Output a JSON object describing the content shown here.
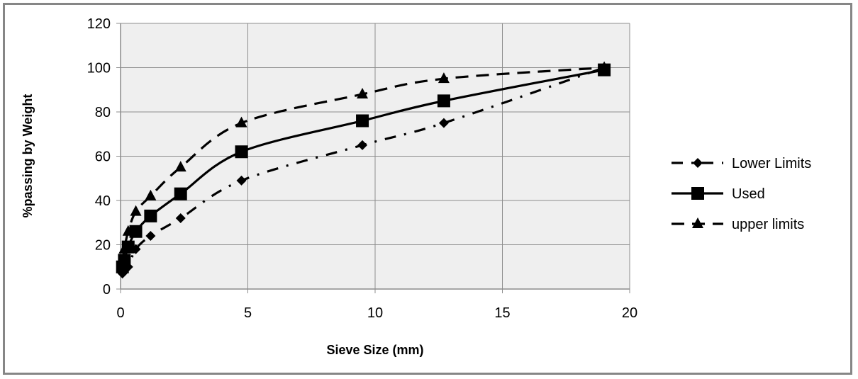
{
  "chart_data": {
    "type": "scatter",
    "title": "",
    "xlabel": "Sieve Size (mm)",
    "ylabel": "%passing by Weight",
    "xlim": [
      0,
      20
    ],
    "ylim": [
      0,
      120
    ],
    "x_ticks": [
      0,
      5,
      10,
      15,
      20
    ],
    "y_ticks": [
      0,
      20,
      40,
      60,
      80,
      100,
      120
    ],
    "grid": true,
    "legend_position": "right",
    "plot_background": "#efefef",
    "series": [
      {
        "name": "Lower Limits",
        "marker": "diamond",
        "line_style": "dash-dot",
        "color": "#000000",
        "x": [
          0.075,
          0.15,
          0.3,
          0.6,
          1.18,
          2.36,
          4.75,
          9.5,
          12.7,
          19
        ],
        "y": [
          7,
          9,
          10,
          18,
          24,
          32,
          49,
          65,
          75,
          100
        ]
      },
      {
        "name": "Used",
        "marker": "square",
        "line_style": "solid",
        "color": "#000000",
        "x": [
          0.075,
          0.15,
          0.3,
          0.6,
          1.18,
          2.36,
          4.75,
          9.5,
          12.7,
          19
        ],
        "y": [
          10,
          13,
          19,
          26,
          33,
          43,
          62,
          76,
          85,
          99
        ]
      },
      {
        "name": "upper limits",
        "marker": "triangle",
        "line_style": "dashed",
        "color": "#000000",
        "x": [
          0.075,
          0.15,
          0.3,
          0.6,
          1.18,
          2.36,
          4.75,
          9.5,
          12.7,
          19
        ],
        "y": [
          12,
          18,
          26,
          35,
          42,
          55,
          75,
          88,
          95,
          100
        ]
      }
    ]
  }
}
